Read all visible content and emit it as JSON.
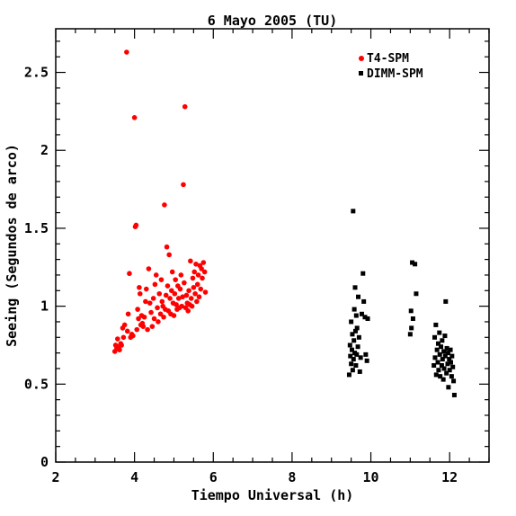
{
  "chart_data": {
    "type": "scatter",
    "title": "6 Mayo 2005 (TU)",
    "xlabel": "Tiempo Universal (h)",
    "ylabel": "Seeing (Segundos de arco)",
    "xlim": [
      2,
      13
    ],
    "ylim": [
      0,
      2.78
    ],
    "xticks": [
      2,
      4,
      6,
      8,
      10,
      12
    ],
    "yticks": [
      0,
      0.5,
      1,
      1.5,
      2,
      2.5
    ],
    "xtick_labels": [
      "2",
      "4",
      "6",
      "8",
      "10",
      "12"
    ],
    "ytick_labels": [
      "0",
      "0.5",
      "1",
      "1.5",
      "2",
      "2.5"
    ],
    "grid": false,
    "legend_position": "top-right",
    "series": [
      {
        "name": "T4-SPM",
        "color": "#ff0000",
        "marker": "circle",
        "points": [
          [
            3.5,
            0.71
          ],
          [
            3.52,
            0.75
          ],
          [
            3.55,
            0.73
          ],
          [
            3.57,
            0.79
          ],
          [
            3.6,
            0.74
          ],
          [
            3.62,
            0.72
          ],
          [
            3.65,
            0.76
          ],
          [
            3.67,
            0.75
          ],
          [
            3.7,
            0.86
          ],
          [
            3.72,
            0.8
          ],
          [
            3.75,
            0.88
          ],
          [
            3.8,
            2.63
          ],
          [
            3.82,
            0.84
          ],
          [
            3.84,
            0.95
          ],
          [
            3.87,
            1.21
          ],
          [
            3.9,
            0.8
          ],
          [
            3.93,
            0.82
          ],
          [
            3.96,
            0.81
          ],
          [
            4.0,
            2.21
          ],
          [
            4.02,
            1.51
          ],
          [
            4.04,
            1.52
          ],
          [
            4.06,
            0.85
          ],
          [
            4.08,
            0.98
          ],
          [
            4.1,
            0.92
          ],
          [
            4.12,
            1.12
          ],
          [
            4.14,
            1.08
          ],
          [
            4.16,
            0.88
          ],
          [
            4.18,
            0.94
          ],
          [
            4.2,
            0.89
          ],
          [
            4.22,
            0.87
          ],
          [
            4.25,
            0.93
          ],
          [
            4.28,
            1.03
          ],
          [
            4.3,
            1.11
          ],
          [
            4.33,
            0.85
          ],
          [
            4.36,
            1.24
          ],
          [
            4.39,
            1.02
          ],
          [
            4.42,
            0.96
          ],
          [
            4.45,
            0.87
          ],
          [
            4.48,
            1.05
          ],
          [
            4.5,
            0.92
          ],
          [
            4.52,
            1.14
          ],
          [
            4.55,
            1.2
          ],
          [
            4.58,
            0.99
          ],
          [
            4.6,
            0.9
          ],
          [
            4.63,
            1.08
          ],
          [
            4.66,
            0.95
          ],
          [
            4.68,
            1.17
          ],
          [
            4.7,
            1.03
          ],
          [
            4.72,
            1.0
          ],
          [
            4.74,
            0.93
          ],
          [
            4.76,
            1.65
          ],
          [
            4.78,
            0.98
          ],
          [
            4.8,
            1.07
          ],
          [
            4.82,
            1.38
          ],
          [
            4.84,
            1.13
          ],
          [
            4.86,
            0.97
          ],
          [
            4.88,
            1.33
          ],
          [
            4.9,
            1.05
          ],
          [
            4.92,
            0.95
          ],
          [
            4.94,
            1.1
          ],
          [
            4.96,
            1.22
          ],
          [
            4.98,
            1.02
          ],
          [
            5.0,
            0.94
          ],
          [
            5.02,
            1.08
          ],
          [
            5.04,
            1.17
          ],
          [
            5.06,
            1.01
          ],
          [
            5.08,
            0.98
          ],
          [
            5.1,
            1.13
          ],
          [
            5.12,
            1.05
          ],
          [
            5.14,
            0.99
          ],
          [
            5.16,
            1.11
          ],
          [
            5.18,
            1.2
          ],
          [
            5.2,
            1.0
          ],
          [
            5.22,
            1.06
          ],
          [
            5.24,
            1.78
          ],
          [
            5.26,
            1.15
          ],
          [
            5.28,
            2.28
          ],
          [
            5.3,
            0.99
          ],
          [
            5.32,
            1.07
          ],
          [
            5.34,
            1.02
          ],
          [
            5.36,
            0.97
          ],
          [
            5.38,
            1.1
          ],
          [
            5.4,
            1.01
          ],
          [
            5.42,
            1.29
          ],
          [
            5.44,
            1.05
          ],
          [
            5.46,
            1.0
          ],
          [
            5.48,
            1.18
          ],
          [
            5.5,
            1.12
          ],
          [
            5.52,
            1.22
          ],
          [
            5.54,
            1.08
          ],
          [
            5.56,
            1.27
          ],
          [
            5.58,
            1.03
          ],
          [
            5.6,
            1.14
          ],
          [
            5.62,
            1.2
          ],
          [
            5.64,
            1.06
          ],
          [
            5.66,
            1.26
          ],
          [
            5.68,
            1.11
          ],
          [
            5.7,
            1.24
          ],
          [
            5.72,
            1.18
          ],
          [
            5.75,
            1.28
          ],
          [
            5.78,
            1.22
          ],
          [
            5.8,
            1.09
          ]
        ]
      },
      {
        "name": "DIMM-SPM",
        "color": "#000000",
        "marker": "square",
        "points": [
          [
            9.45,
            0.56
          ],
          [
            9.47,
            0.75
          ],
          [
            9.48,
            0.68
          ],
          [
            9.5,
            0.63
          ],
          [
            9.5,
            0.9
          ],
          [
            9.52,
            0.72
          ],
          [
            9.53,
            0.82
          ],
          [
            9.54,
            0.59
          ],
          [
            9.55,
            1.61
          ],
          [
            9.56,
            0.66
          ],
          [
            9.57,
            0.78
          ],
          [
            9.58,
            0.98
          ],
          [
            9.59,
            0.7
          ],
          [
            9.6,
            1.12
          ],
          [
            9.61,
            0.84
          ],
          [
            9.62,
            0.62
          ],
          [
            9.63,
            0.94
          ],
          [
            9.64,
            0.69
          ],
          [
            9.65,
            0.86
          ],
          [
            9.67,
            0.74
          ],
          [
            9.68,
            1.06
          ],
          [
            9.7,
            0.8
          ],
          [
            9.72,
            0.58
          ],
          [
            9.74,
            0.67
          ],
          [
            9.77,
            0.95
          ],
          [
            9.8,
            1.21
          ],
          [
            9.82,
            1.03
          ],
          [
            9.85,
            0.93
          ],
          [
            9.87,
            0.69
          ],
          [
            9.9,
            0.65
          ],
          [
            9.92,
            0.92
          ],
          [
            11.0,
            0.82
          ],
          [
            11.02,
            0.97
          ],
          [
            11.03,
            0.86
          ],
          [
            11.05,
            1.28
          ],
          [
            11.07,
            0.92
          ],
          [
            11.12,
            1.27
          ],
          [
            11.15,
            1.08
          ],
          [
            11.6,
            0.62
          ],
          [
            11.62,
            0.8
          ],
          [
            11.63,
            0.67
          ],
          [
            11.65,
            0.88
          ],
          [
            11.66,
            0.56
          ],
          [
            11.68,
            0.72
          ],
          [
            11.7,
            0.64
          ],
          [
            11.71,
            0.76
          ],
          [
            11.72,
            0.59
          ],
          [
            11.74,
            0.83
          ],
          [
            11.75,
            0.69
          ],
          [
            11.76,
            0.55
          ],
          [
            11.78,
            0.74
          ],
          [
            11.8,
            0.62
          ],
          [
            11.81,
            0.78
          ],
          [
            11.82,
            0.66
          ],
          [
            11.84,
            0.53
          ],
          [
            11.85,
            0.71
          ],
          [
            11.86,
            0.6
          ],
          [
            11.88,
            0.81
          ],
          [
            11.89,
            0.68
          ],
          [
            11.9,
            1.03
          ],
          [
            11.92,
            0.57
          ],
          [
            11.93,
            0.73
          ],
          [
            11.95,
            0.63
          ],
          [
            11.96,
            0.7
          ],
          [
            11.97,
            0.48
          ],
          [
            11.99,
            0.66
          ],
          [
            12.0,
            0.59
          ],
          [
            12.02,
            0.72
          ],
          [
            12.03,
            0.64
          ],
          [
            12.05,
            0.55
          ],
          [
            12.06,
            0.68
          ],
          [
            12.08,
            0.61
          ],
          [
            12.1,
            0.52
          ],
          [
            12.12,
            0.43
          ]
        ]
      }
    ]
  }
}
